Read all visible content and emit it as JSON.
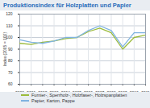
{
  "chart_data": {
    "type": "line",
    "title": "Produktionsindex für Holzplatten und Papier",
    "y_label": "Index (2005 = 100)",
    "x": [
      2000,
      2001,
      2002,
      2003,
      2004,
      2005,
      2006,
      2007,
      2008,
      2009,
      2010,
      2011
    ],
    "series": [
      {
        "name": "Furnier-, Sperrholz-, Holzfaser-, Holzspanplatten",
        "color": "#9bbb3c",
        "values": [
          95,
          94,
          96,
          97,
          99,
          100,
          105,
          108,
          104,
          90,
          100,
          102
        ]
      },
      {
        "name": "Papier, Karton, Pappe",
        "color": "#7fb3e0",
        "values": [
          98,
          96,
          95,
          97,
          100,
          100,
          106,
          110,
          106,
          92,
          104,
          104
        ]
      }
    ],
    "xlim": [
      2000,
      2011
    ],
    "xticks": [
      2000,
      2001,
      2002,
      2003,
      2004,
      2005,
      2006,
      2007,
      2008,
      2009,
      2010,
      2011
    ],
    "ylim": [
      60,
      120
    ],
    "yticks": [
      60,
      70,
      80,
      90,
      100,
      110,
      120
    ],
    "grid": true,
    "legend": "bottom"
  }
}
